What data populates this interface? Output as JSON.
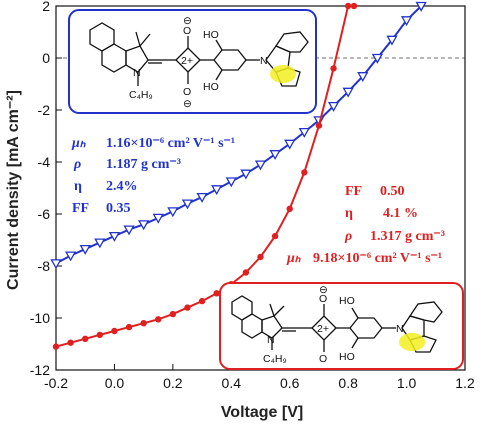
{
  "chart_data": {
    "type": "line",
    "xlabel": "Voltage [V]",
    "ylabel": "Current density [mA cm⁻²]",
    "xlim": [
      -0.2,
      1.2
    ],
    "ylim": [
      -12,
      2
    ],
    "xticks": [
      "-0.2",
      "0.0",
      "0.2",
      "0.4",
      "0.6",
      "0.8",
      "1.0",
      "1.2"
    ],
    "yticks": [
      "2",
      "0",
      "-2",
      "-4",
      "-6",
      "-8",
      "-10",
      "-12"
    ],
    "grid": false,
    "series": [
      {
        "color": "#2233cc",
        "marker": "triangle-down-open",
        "x": [
          -0.2,
          -0.15,
          -0.1,
          -0.05,
          0.0,
          0.05,
          0.1,
          0.15,
          0.2,
          0.25,
          0.3,
          0.35,
          0.4,
          0.45,
          0.5,
          0.55,
          0.6,
          0.65,
          0.7,
          0.75,
          0.8,
          0.85,
          0.9,
          0.95,
          1.0,
          1.05
        ],
        "y": [
          -7.9,
          -7.6,
          -7.35,
          -7.1,
          -6.85,
          -6.6,
          -6.4,
          -6.15,
          -5.9,
          -5.6,
          -5.35,
          -5.05,
          -4.75,
          -4.45,
          -4.1,
          -3.7,
          -3.3,
          -2.85,
          -2.4,
          -1.85,
          -1.3,
          -0.7,
          0.0,
          0.7,
          1.45,
          2.0
        ]
      },
      {
        "color": "#e02020",
        "marker": "circle-filled",
        "x": [
          -0.2,
          -0.15,
          -0.1,
          -0.05,
          0.0,
          0.05,
          0.1,
          0.15,
          0.2,
          0.25,
          0.3,
          0.35,
          0.4,
          0.45,
          0.5,
          0.55,
          0.6,
          0.65,
          0.7,
          0.75,
          0.8,
          0.82
        ],
        "y": [
          -11.1,
          -10.95,
          -10.8,
          -10.65,
          -10.5,
          -10.35,
          -10.2,
          -10.05,
          -9.85,
          -9.6,
          -9.35,
          -9.05,
          -8.7,
          -8.25,
          -7.65,
          -6.85,
          -5.8,
          -4.4,
          -2.6,
          -0.4,
          2.0,
          2.0
        ]
      }
    ],
    "annotations": {
      "blue": [
        {
          "label": "μₕ",
          "value": "1.16×10⁻⁶ cm² V⁻¹ s⁻¹"
        },
        {
          "label": "ρ",
          "value": "1.187 g cm⁻³"
        },
        {
          "label": "η",
          "value": "2.4%"
        },
        {
          "label": "FF",
          "value": "0.35"
        }
      ],
      "red": [
        {
          "label": "FF",
          "value": "0.50"
        },
        {
          "label": "η",
          "value": "4.1 %"
        },
        {
          "label": "ρ",
          "value": "1.317 g cm⁻³"
        },
        {
          "label": "μₕ",
          "value": "9.18×10⁻⁶ cm² V⁻¹ s⁻¹"
        }
      ]
    },
    "molecule_labels": {
      "substituent": "C₄H₉",
      "nitrogen": "N",
      "hydroxyl_top": "HO",
      "hydroxyl_bottom": "HO",
      "oxygen_top": "O",
      "oxygen_bottom": "O",
      "charge_top": "⊖",
      "charge_bottom": "⊖",
      "ring_charge": "2+"
    },
    "colors": {
      "blue": "#2233cc",
      "red": "#e02020",
      "highlight": "#f2ee20"
    }
  }
}
